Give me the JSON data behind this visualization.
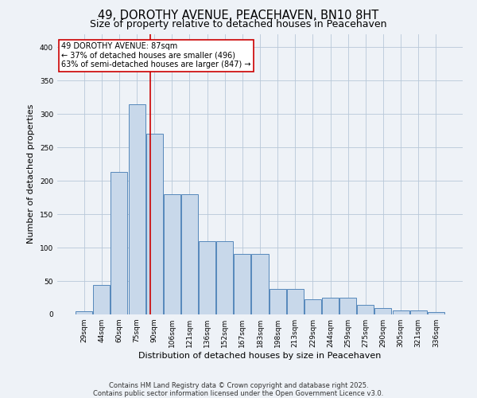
{
  "categories": [
    "29sqm",
    "44sqm",
    "60sqm",
    "75sqm",
    "90sqm",
    "106sqm",
    "121sqm",
    "136sqm",
    "152sqm",
    "167sqm",
    "183sqm",
    "198sqm",
    "213sqm",
    "229sqm",
    "244sqm",
    "259sqm",
    "275sqm",
    "290sqm",
    "305sqm",
    "321sqm",
    "336sqm"
  ],
  "values": [
    5,
    44,
    213,
    315,
    270,
    180,
    180,
    110,
    110,
    90,
    90,
    38,
    38,
    23,
    25,
    25,
    14,
    10,
    6,
    6,
    3
  ],
  "bar_color": "#c8d8ea",
  "bar_edge_color": "#5588bb",
  "title_line1": "49, DOROTHY AVENUE, PEACEHAVEN, BN10 8HT",
  "title_line2": "Size of property relative to detached houses in Peacehaven",
  "xlabel": "Distribution of detached houses by size in Peacehaven",
  "ylabel": "Number of detached properties",
  "vline_x": 3.78,
  "vline_color": "#cc0000",
  "annotation_text": "49 DOROTHY AVENUE: 87sqm\n← 37% of detached houses are smaller (496)\n63% of semi-detached houses are larger (847) →",
  "ylim": [
    0,
    420
  ],
  "yticks": [
    0,
    50,
    100,
    150,
    200,
    250,
    300,
    350,
    400
  ],
  "footnote1": "Contains HM Land Registry data © Crown copyright and database right 2025.",
  "footnote2": "Contains public sector information licensed under the Open Government Licence v3.0.",
  "background_color": "#eef2f7",
  "plot_bg_color": "#eef2f7",
  "grid_color": "#b8c8d8",
  "title_fontsize": 10.5,
  "subtitle_fontsize": 9,
  "tick_fontsize": 6.5,
  "axis_label_fontsize": 8,
  "annotation_fontsize": 7,
  "footnote_fontsize": 6
}
